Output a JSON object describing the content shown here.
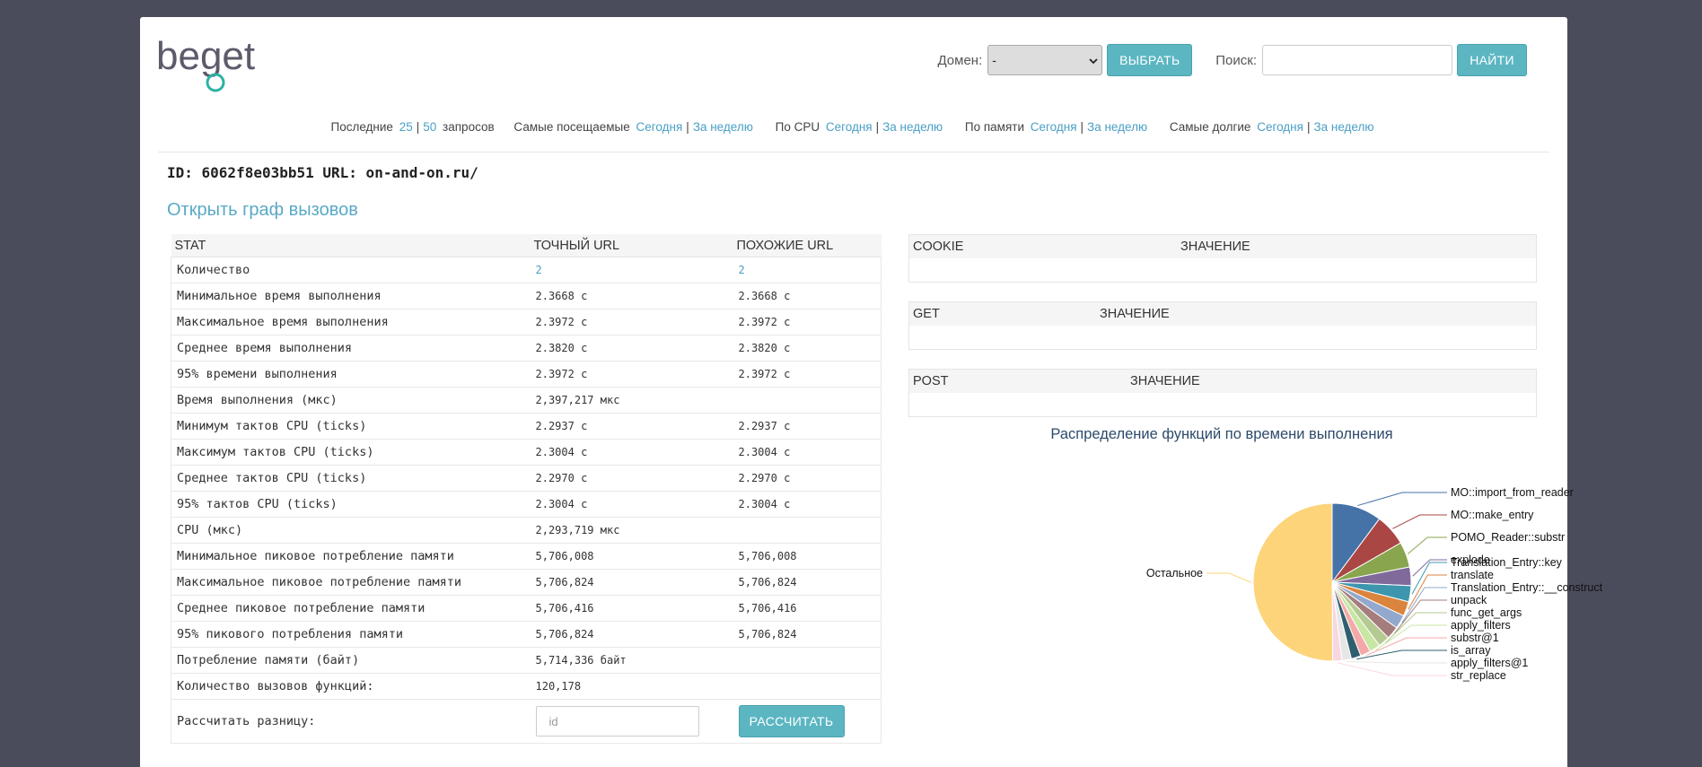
{
  "header": {
    "logo_text": "beget",
    "domain_label": "Домен:",
    "domain_selected": "-",
    "select_button": "ВЫБРАТЬ",
    "search_label": "Поиск:",
    "search_value": "",
    "find_button": "НАЙТИ"
  },
  "nav": {
    "last_label": "Последние",
    "last_25": "25",
    "last_50": "50",
    "last_suffix": "запросов",
    "visited_label": "Самые посещаемые",
    "cpu_label": "По CPU",
    "mem_label": "По памяти",
    "long_label": "Самые долгие",
    "today": "Сегодня",
    "week": "За неделю",
    "sep": "|"
  },
  "id_line": "ID: 6062f8e03bb51 URL: on-and-on.ru/",
  "graph_link": "Открыть граф вызовов",
  "stat_table": {
    "headers": [
      "STAT",
      "ТОЧНЫЙ URL",
      "ПОХОЖИЕ URL"
    ],
    "rows": [
      [
        "Количество",
        "2",
        "2"
      ],
      [
        "Минимальное время выполнения",
        "2.3668 с",
        "2.3668 с"
      ],
      [
        "Максимальное время выполнения",
        "2.3972 с",
        "2.3972 с"
      ],
      [
        "Среднее время выполнения",
        "2.3820 с",
        "2.3820 с"
      ],
      [
        "95% времени выполнения",
        "2.3972 с",
        "2.3972 с"
      ],
      [
        "Время выполнения (мкс)",
        "2,397,217 мкс",
        ""
      ],
      [
        "Минимум тактов CPU (ticks)",
        "2.2937 с",
        "2.2937 с"
      ],
      [
        "Максимум тактов CPU (ticks)",
        "2.3004 с",
        "2.3004 с"
      ],
      [
        "Среднее тактов CPU (ticks)",
        "2.2970 с",
        "2.2970 с"
      ],
      [
        "95% тактов CPU (ticks)",
        "2.3004 с",
        "2.3004 с"
      ],
      [
        "CPU (мкс)",
        "2,293,719 мкс",
        ""
      ],
      [
        "Минимальное пиковое потребление памяти",
        "5,706,008",
        "5,706,008"
      ],
      [
        "Максимальное пиковое потребление памяти",
        "5,706,824",
        "5,706,824"
      ],
      [
        "Среднее пиковое потребление памяти",
        "5,706,416",
        "5,706,416"
      ],
      [
        "95% пикового потребления памяти",
        "5,706,824",
        "5,706,824"
      ],
      [
        "Потребление памяти (байт)",
        "5,714,336 байт",
        ""
      ],
      [
        "Количество вызовов функций:",
        "120,178",
        ""
      ]
    ],
    "diff_label": "Рассчитать разницу:",
    "diff_placeholder": "id",
    "diff_button": "РАССЧИТАТЬ"
  },
  "cookie": {
    "key": "COOKIE",
    "value": "ЗНАЧЕНИЕ"
  },
  "get": {
    "key": "GET",
    "value": "ЗНАЧЕНИЕ"
  },
  "post": {
    "key": "POST",
    "value": "ЗНАЧЕНИЕ"
  },
  "chart_data": {
    "type": "pie",
    "title": "Распределение функций по времени выполнения",
    "slices": [
      {
        "label": "MO::import_from_reader",
        "value": 10.2,
        "color": "#4572a7"
      },
      {
        "label": "MO::make_entry",
        "value": 6.5,
        "color": "#aa4643"
      },
      {
        "label": "POMO_Reader::substr",
        "value": 5.2,
        "color": "#89a54e"
      },
      {
        "label": "explode",
        "value": 3.8,
        "color": "#80699b"
      },
      {
        "label": "Translation_Entry::key",
        "value": 3.3,
        "color": "#3d96ae"
      },
      {
        "label": "translate",
        "value": 3.0,
        "color": "#db843d"
      },
      {
        "label": "Translation_Entry::__construct",
        "value": 2.8,
        "color": "#92a8cd"
      },
      {
        "label": "unpack",
        "value": 2.6,
        "color": "#a47d7c"
      },
      {
        "label": "func_get_args",
        "value": 2.4,
        "color": "#b5ca92"
      },
      {
        "label": "apply_filters",
        "value": 2.2,
        "color": "#c8e6a4"
      },
      {
        "label": "substr@1",
        "value": 2.1,
        "color": "#f4a9a8"
      },
      {
        "label": "is_array",
        "value": 2.0,
        "color": "#2f5f6e"
      },
      {
        "label": "apply_filters@1",
        "value": 1.9,
        "color": "#e6e6e6"
      },
      {
        "label": "str_replace",
        "value": 1.9,
        "color": "#f8d7e0"
      },
      {
        "label": "Остальное",
        "value": 50.1,
        "color": "#fdd47a"
      }
    ]
  }
}
